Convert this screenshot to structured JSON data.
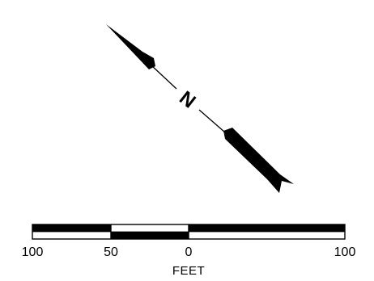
{
  "north_arrow": {
    "label": "N",
    "icon": "north-arrow-icon"
  },
  "scale_bar": {
    "tick_labels": [
      "100",
      "50",
      "0",
      "100"
    ],
    "unit": "FEET"
  },
  "colors": {
    "ink": "#000000",
    "paper": "#ffffff"
  }
}
